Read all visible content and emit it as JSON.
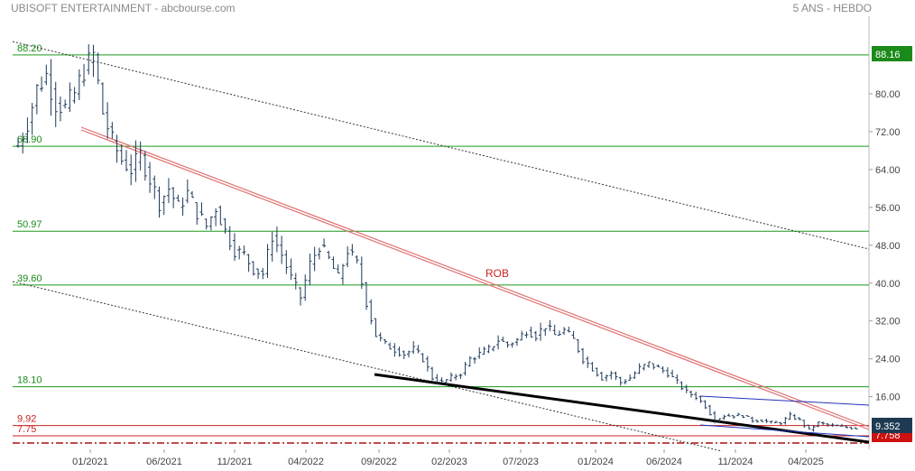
{
  "header": {
    "title": "UBISOFT ENTERTAINMENT - abcbourse.com",
    "period": "5 ANS - HEBDO"
  },
  "chart_data": {
    "type": "candlestick",
    "y_axis_ticks": [
      "80.00",
      "72.00",
      "64.00",
      "56.00",
      "48.00",
      "40.00",
      "32.00",
      "24.00",
      "16.00"
    ],
    "y_range": [
      4.5,
      96
    ],
    "x_axis_ticks": [
      "01/2021",
      "06/2021",
      "11/2021",
      "04/2022",
      "09/2022",
      "02/2023",
      "07/2023",
      "01/2024",
      "06/2024",
      "11/2024",
      "04/2025"
    ],
    "levels": [
      {
        "value": 88.2,
        "label": "88.20",
        "color": "#1a9a1a"
      },
      {
        "value": 68.9,
        "label": "68.90",
        "color": "#1a9a1a"
      },
      {
        "value": 50.97,
        "label": "50.97",
        "color": "#1a9a1a"
      },
      {
        "value": 39.6,
        "label": "39.60",
        "color": "#1a9a1a"
      },
      {
        "value": 18.1,
        "label": "18.10",
        "color": "#1a9a1a"
      },
      {
        "value": 9.92,
        "label": "9.92",
        "color": "#cc2222"
      },
      {
        "value": 7.75,
        "label": "7.75",
        "color": "#cc2222"
      }
    ],
    "annotation": "ROB",
    "last_price": "9.352",
    "high_badge": "88.16",
    "low_badge": "7.758",
    "price_path": [
      [
        0,
        69
      ],
      [
        2,
        74
      ],
      [
        4,
        81
      ],
      [
        6,
        84
      ],
      [
        8,
        78
      ],
      [
        10,
        77
      ],
      [
        12,
        80
      ],
      [
        14,
        85
      ],
      [
        16,
        88.2
      ],
      [
        18,
        76
      ],
      [
        20,
        70
      ],
      [
        22,
        66
      ],
      [
        24,
        64
      ],
      [
        26,
        67
      ],
      [
        28,
        62
      ],
      [
        30,
        57
      ],
      [
        32,
        60
      ],
      [
        34,
        56
      ],
      [
        36,
        59
      ],
      [
        38,
        55
      ],
      [
        40,
        52
      ],
      [
        42,
        56
      ],
      [
        44,
        51
      ],
      [
        46,
        47
      ],
      [
        48,
        46
      ],
      [
        50,
        43
      ],
      [
        52,
        42
      ],
      [
        54,
        50
      ],
      [
        56,
        46
      ],
      [
        58,
        41
      ],
      [
        60,
        37
      ],
      [
        62,
        44
      ],
      [
        64,
        48
      ],
      [
        66,
        45
      ],
      [
        68,
        41
      ],
      [
        70,
        47
      ],
      [
        72,
        44
      ],
      [
        74,
        36
      ],
      [
        76,
        29
      ],
      [
        78,
        27
      ],
      [
        80,
        26
      ],
      [
        82,
        25
      ],
      [
        84,
        26
      ],
      [
        86,
        24
      ],
      [
        88,
        20
      ],
      [
        90,
        19
      ],
      [
        92,
        20
      ],
      [
        94,
        21
      ],
      [
        96,
        24
      ],
      [
        98,
        25
      ],
      [
        100,
        26
      ],
      [
        102,
        28
      ],
      [
        104,
        27
      ],
      [
        106,
        28
      ],
      [
        108,
        30
      ],
      [
        110,
        29
      ],
      [
        112,
        31
      ],
      [
        114,
        29
      ],
      [
        116,
        30
      ],
      [
        118,
        28
      ],
      [
        120,
        24
      ],
      [
        122,
        22
      ],
      [
        124,
        20
      ],
      [
        126,
        21
      ],
      [
        128,
        19
      ],
      [
        130,
        20
      ],
      [
        132,
        22
      ],
      [
        134,
        23
      ],
      [
        136,
        22
      ],
      [
        138,
        21
      ],
      [
        140,
        19
      ],
      [
        142,
        17
      ],
      [
        144,
        16
      ],
      [
        146,
        14
      ],
      [
        148,
        11
      ],
      [
        150,
        12
      ],
      [
        152,
        12
      ],
      [
        154,
        12
      ],
      [
        156,
        11
      ],
      [
        158,
        11
      ],
      [
        160,
        10.5
      ],
      [
        162,
        10.5
      ],
      [
        164,
        12
      ],
      [
        166,
        11
      ],
      [
        168,
        9
      ],
      [
        170,
        10.5
      ],
      [
        172,
        10
      ],
      [
        174,
        9.8
      ],
      [
        176,
        9.5
      ],
      [
        178,
        9.352
      ]
    ]
  }
}
